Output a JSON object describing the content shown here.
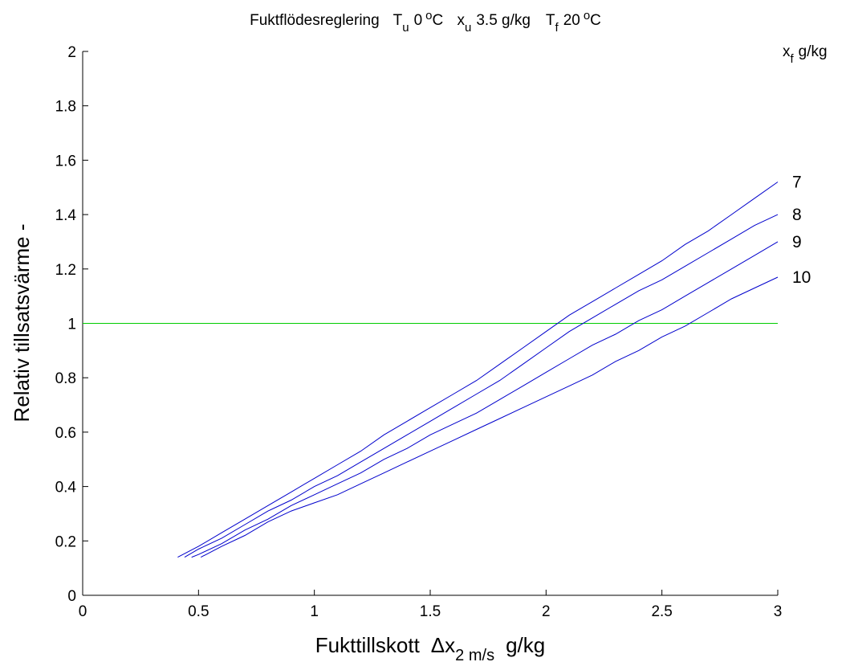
{
  "chart_data": {
    "type": "line",
    "title_parts": {
      "prefix": "Fuktflödesreglering",
      "tu_symbol": "T",
      "tu_sub": "u",
      "tu_value": "0",
      "tu_sup": "o",
      "tu_unit": "C",
      "xu_symbol": "x",
      "xu_sub": "u",
      "xu_value": "3.5 g/kg",
      "tf_symbol": "T",
      "tf_sub": "f",
      "tf_value": "20",
      "tf_sup": "o",
      "tf_unit": "C"
    },
    "xlabel_parts": {
      "main": "Fukttillskott",
      "delta": "Δx",
      "sub": "2 m/s",
      "unit": "g/kg"
    },
    "ylabel": "Relativ tillsatsvärme  -",
    "legend_title": {
      "symbol": "x",
      "sub": "f",
      "unit": "g/kg"
    },
    "xlim": [
      0,
      3
    ],
    "ylim": [
      0,
      2
    ],
    "xticks": [
      0,
      0.5,
      1,
      1.5,
      2,
      2.5,
      3
    ],
    "yticks": [
      0,
      0.2,
      0.4,
      0.6,
      0.8,
      1,
      1.2,
      1.4,
      1.6,
      1.8,
      2
    ],
    "xtick_labels": [
      "0",
      "0.5",
      "1",
      "1.5",
      "2",
      "2.5",
      "3"
    ],
    "ytick_labels": [
      "0",
      "0.2",
      "0.4",
      "0.6",
      "0.8",
      "1",
      "1.2",
      "1.4",
      "1.6",
      "1.8",
      "2"
    ],
    "grid": false,
    "reference_line": {
      "y": 1,
      "x": [
        0,
        3
      ],
      "color": "#00cc00"
    },
    "line_color": "#0000cc",
    "series": [
      {
        "name": "7",
        "x": [
          0.41,
          0.5,
          0.6,
          0.7,
          0.8,
          0.9,
          1.0,
          1.1,
          1.2,
          1.3,
          1.4,
          1.5,
          1.6,
          1.7,
          1.8,
          1.9,
          2.0,
          2.1,
          2.2,
          2.3,
          2.4,
          2.5,
          2.6,
          2.7,
          2.8,
          2.9,
          3.0
        ],
        "y": [
          0.14,
          0.18,
          0.23,
          0.28,
          0.33,
          0.38,
          0.43,
          0.48,
          0.53,
          0.59,
          0.64,
          0.69,
          0.74,
          0.79,
          0.85,
          0.91,
          0.97,
          1.03,
          1.08,
          1.13,
          1.18,
          1.23,
          1.29,
          1.34,
          1.4,
          1.46,
          1.52
        ]
      },
      {
        "name": "8",
        "x": [
          0.44,
          0.5,
          0.6,
          0.7,
          0.8,
          0.9,
          1.0,
          1.1,
          1.2,
          1.3,
          1.4,
          1.5,
          1.6,
          1.7,
          1.8,
          1.9,
          2.0,
          2.1,
          2.2,
          2.3,
          2.4,
          2.5,
          2.6,
          2.7,
          2.8,
          2.9,
          3.0
        ],
        "y": [
          0.14,
          0.17,
          0.21,
          0.26,
          0.31,
          0.35,
          0.4,
          0.44,
          0.49,
          0.54,
          0.59,
          0.64,
          0.69,
          0.74,
          0.79,
          0.85,
          0.91,
          0.97,
          1.02,
          1.07,
          1.12,
          1.16,
          1.21,
          1.26,
          1.31,
          1.36,
          1.4
        ]
      },
      {
        "name": "9",
        "x": [
          0.47,
          0.5,
          0.6,
          0.7,
          0.8,
          0.9,
          1.0,
          1.1,
          1.2,
          1.3,
          1.4,
          1.5,
          1.6,
          1.7,
          1.8,
          1.9,
          2.0,
          2.1,
          2.2,
          2.3,
          2.4,
          2.5,
          2.6,
          2.7,
          2.8,
          2.9,
          3.0
        ],
        "y": [
          0.14,
          0.15,
          0.19,
          0.24,
          0.28,
          0.33,
          0.37,
          0.41,
          0.45,
          0.5,
          0.54,
          0.59,
          0.63,
          0.67,
          0.72,
          0.77,
          0.82,
          0.87,
          0.92,
          0.96,
          1.01,
          1.05,
          1.1,
          1.15,
          1.2,
          1.25,
          1.3
        ]
      },
      {
        "name": "10",
        "x": [
          0.51,
          0.6,
          0.7,
          0.8,
          0.9,
          1.0,
          1.1,
          1.2,
          1.3,
          1.4,
          1.5,
          1.6,
          1.7,
          1.8,
          1.9,
          2.0,
          2.1,
          2.2,
          2.3,
          2.4,
          2.5,
          2.6,
          2.7,
          2.8,
          2.9,
          3.0
        ],
        "y": [
          0.14,
          0.18,
          0.22,
          0.27,
          0.31,
          0.34,
          0.37,
          0.41,
          0.45,
          0.49,
          0.53,
          0.57,
          0.61,
          0.65,
          0.69,
          0.73,
          0.77,
          0.81,
          0.86,
          0.9,
          0.95,
          0.99,
          1.04,
          1.09,
          1.13,
          1.17
        ]
      }
    ]
  }
}
